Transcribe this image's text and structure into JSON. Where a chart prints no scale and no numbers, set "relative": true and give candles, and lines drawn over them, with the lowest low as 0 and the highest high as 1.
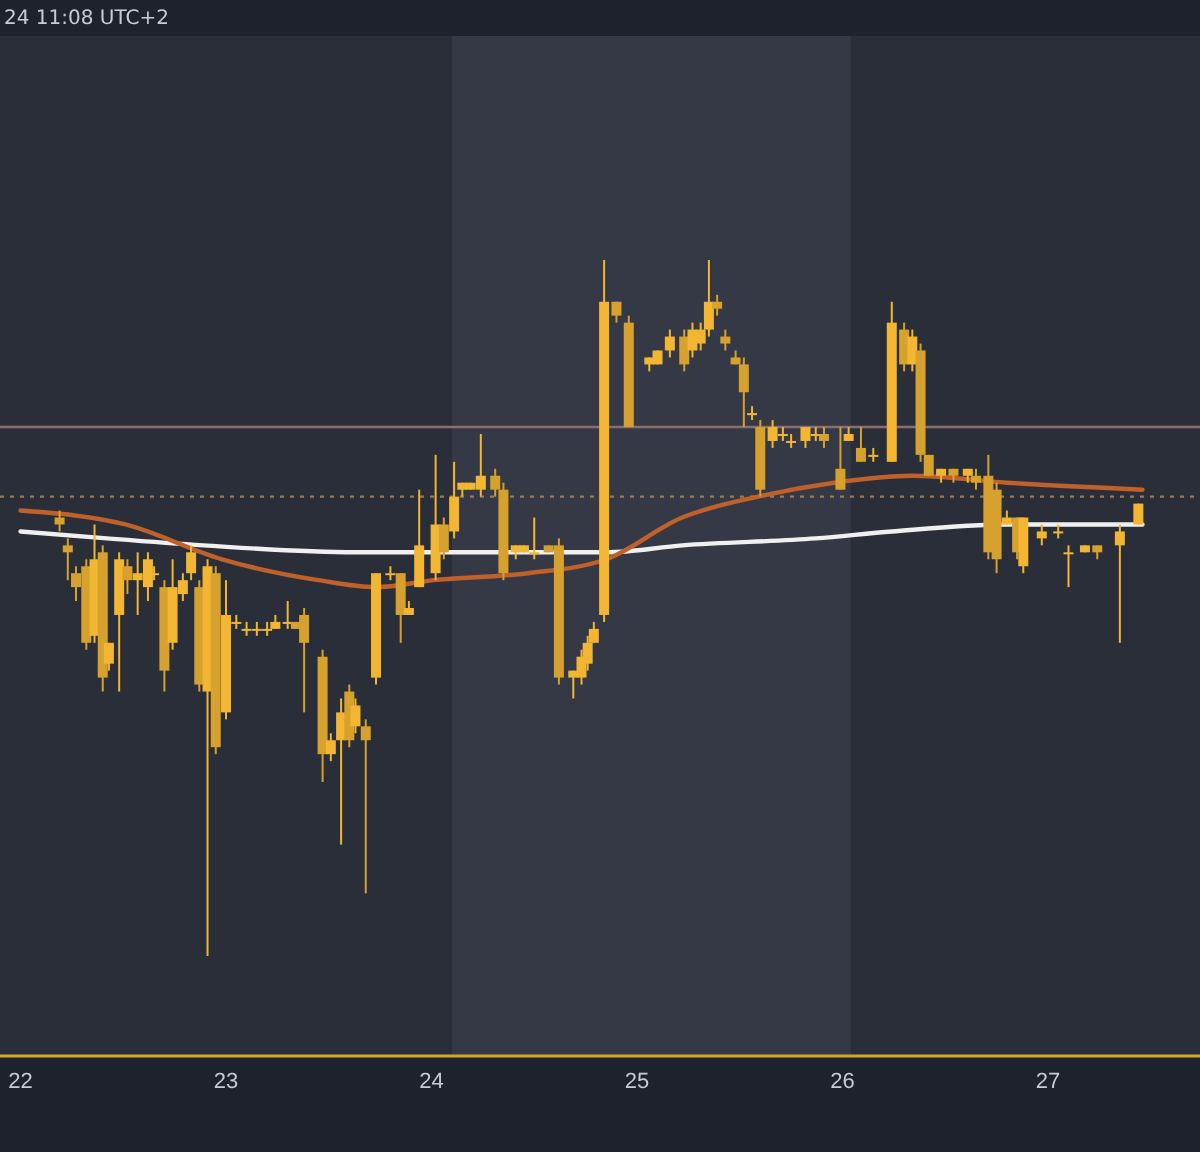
{
  "chart_data": {
    "type": "candlestick",
    "relative": true,
    "annotations": [
      "24 11:08 UTC+2"
    ],
    "xlim": [
      21.9,
      27.74
    ],
    "xticks": [
      22,
      23,
      24,
      25,
      26,
      27
    ],
    "bands": [
      {
        "axis": "x",
        "from": 24.1,
        "to": 26.04,
        "color": "#353945"
      }
    ],
    "ref_lines": [
      {
        "axis": "y",
        "value": 0.76,
        "color": "#8a6e70",
        "line_style": "solid"
      },
      {
        "axis": "y",
        "value": 0.66,
        "color": "#9a7a55",
        "line_style": "dotted"
      }
    ],
    "series": [
      {
        "type": "candlestick",
        "color": "#f2b632",
        "colors": [
          "#d6a12c",
          "#d6a12c",
          "#d6a12c",
          "#d6a12c",
          "#f2b632",
          "#d6a12c",
          "#f2b632",
          "#f2b632",
          "#d6a12c",
          "#f2b632",
          "#f2b632",
          "#f2b632",
          "#d6a12c",
          "#f2b632",
          "#f2b632",
          "#f2b632",
          "#d6a12c",
          "#f2b632",
          "#d6a12c",
          "#f2b632",
          "#f2b632",
          "#f2b632",
          "#f2b632",
          "#f2b632",
          "#f2b632",
          "#f2b632",
          "#d6a12c",
          "#d6a12c",
          "#d6a12c",
          "#f2b632",
          "#f2b632",
          "#d6a12c",
          "#f2b632",
          "#d6a12c",
          "#f2b632",
          "#f2b632",
          "#d6a12c",
          "#f2b632",
          "#f2b632",
          "#f2b632",
          "#d6a12c",
          "#f2b632",
          "#f2b632",
          "#f2b632",
          "#f2b632",
          "#d6a12c",
          "#d6a12c",
          "#f2b632",
          "#f2b632",
          "#f2b632",
          "#d6a12c",
          "#d6a12c",
          "#f2b632",
          "#f2b632",
          "#f2b632",
          "#f2b632",
          "#f2b632",
          "#d6a12c",
          "#d6a12c",
          "#f2b632",
          "#f2b632",
          "#f2b632",
          "#d6a12c",
          "#f2b632",
          "#f2b632",
          "#f2b632",
          "#d6a12c",
          "#d6a12c",
          "#d6a12c",
          "#d6a12c",
          "#f2b632",
          "#d6a12c",
          "#f2b632",
          "#f2b632",
          "#f2b632",
          "#f2b632",
          "#f2b632",
          "#d6a12c",
          "#d6a12c",
          "#f2b632",
          "#d6a12c",
          "#f2b632",
          "#f2b632",
          "#d6a12c",
          "#f2b632",
          "#d6a12c",
          "#d6a12c",
          "#f2b632",
          "#d6a12c",
          "#f2b632",
          "#d6a12c",
          "#d6a12c",
          "#d6a12c",
          "#f2b632",
          "#d6a12c",
          "#f2b632",
          "#f2b632",
          "#f2b632",
          "#f2b632",
          "#f2b632",
          "#d6a12c",
          "#f2b632",
          "#f2b632"
        ],
        "x": [
          22.19,
          22.23,
          22.27,
          22.32,
          22.36,
          22.4,
          22.43,
          22.48,
          22.52,
          22.57,
          22.62,
          22.65,
          22.7,
          22.74,
          22.79,
          22.83,
          22.87,
          22.91,
          22.95,
          23.0,
          23.05,
          23.1,
          23.15,
          23.2,
          23.24,
          23.3,
          23.34,
          23.38,
          23.47,
          23.51,
          23.56,
          23.6,
          23.63,
          23.68,
          23.73,
          23.8,
          23.85,
          23.89,
          23.94,
          24.02,
          24.06,
          24.11,
          24.15,
          24.19,
          24.24,
          24.31,
          24.35,
          24.41,
          24.45,
          24.5,
          24.57,
          24.62,
          24.69,
          24.73,
          24.76,
          24.79,
          24.84,
          24.9,
          24.96,
          25.06,
          25.1,
          25.16,
          25.23,
          25.27,
          25.31,
          25.35,
          25.39,
          25.43,
          25.48,
          25.52,
          25.56,
          25.6,
          25.66,
          25.71,
          25.75,
          25.82,
          25.87,
          25.91,
          25.99,
          26.03,
          26.09,
          26.15,
          26.24,
          26.3,
          26.34,
          26.38,
          26.42,
          26.48,
          26.54,
          26.61,
          26.65,
          26.71,
          26.75,
          26.8,
          26.85,
          26.88,
          26.97,
          27.05,
          27.1,
          27.18,
          27.24,
          27.35,
          27.44
        ],
        "ohlc": [
          [
            0.63,
            0.64,
            0.61,
            0.62
          ],
          [
            0.59,
            0.6,
            0.54,
            0.58
          ],
          [
            0.55,
            0.56,
            0.51,
            0.53
          ],
          [
            0.56,
            0.57,
            0.44,
            0.45
          ],
          [
            0.46,
            0.62,
            0.45,
            0.57
          ],
          [
            0.58,
            0.59,
            0.38,
            0.4
          ],
          [
            0.42,
            0.45,
            0.41,
            0.45
          ],
          [
            0.49,
            0.58,
            0.38,
            0.57
          ],
          [
            0.56,
            0.57,
            0.52,
            0.54
          ],
          [
            0.54,
            0.58,
            0.49,
            0.55
          ],
          [
            0.53,
            0.58,
            0.51,
            0.57
          ],
          [
            0.55,
            0.56,
            0.54,
            0.55
          ],
          [
            0.53,
            0.54,
            0.38,
            0.41
          ],
          [
            0.45,
            0.57,
            0.44,
            0.53
          ],
          [
            0.52,
            0.55,
            0.51,
            0.54
          ],
          [
            0.55,
            0.59,
            0.54,
            0.58
          ],
          [
            0.53,
            0.54,
            0.38,
            0.39
          ],
          [
            0.38,
            0.57,
            0,
            0.56
          ],
          [
            0.55,
            0.56,
            0.29,
            0.3
          ],
          [
            0.35,
            0.54,
            0.34,
            0.49
          ],
          [
            0.48,
            0.49,
            0.47,
            0.48
          ],
          [
            0.47,
            0.48,
            0.46,
            0.47
          ],
          [
            0.47,
            0.48,
            0.46,
            0.47
          ],
          [
            0.47,
            0.48,
            0.46,
            0.47
          ],
          [
            0.47,
            0.49,
            0.47,
            0.48
          ],
          [
            0.48,
            0.51,
            0.47,
            0.48
          ],
          [
            0.48,
            0.48,
            0.47,
            0.47
          ],
          [
            0.49,
            0.5,
            0.35,
            0.45
          ],
          [
            0.43,
            0.44,
            0.25,
            0.29
          ],
          [
            0.29,
            0.32,
            0.28,
            0.31
          ],
          [
            0.31,
            0.37,
            0.16,
            0.35
          ],
          [
            0.38,
            0.39,
            0.3,
            0.31
          ],
          [
            0.33,
            0.37,
            0.32,
            0.36
          ],
          [
            0.33,
            0.34,
            0.09,
            0.31
          ],
          [
            0.4,
            0.55,
            0.39,
            0.55
          ],
          [
            0.55,
            0.56,
            0.54,
            0.55
          ],
          [
            0.55,
            0.55,
            0.45,
            0.49
          ],
          [
            0.49,
            0.51,
            0.49,
            0.5
          ],
          [
            0.53,
            0.67,
            0.53,
            0.59
          ],
          [
            0.55,
            0.72,
            0.54,
            0.62
          ],
          [
            0.62,
            0.63,
            0.57,
            0.58
          ],
          [
            0.61,
            0.71,
            0.6,
            0.66
          ],
          [
            0.67,
            0.68,
            0.66,
            0.68
          ],
          [
            0.67,
            0.68,
            0.67,
            0.68
          ],
          [
            0.67,
            0.75,
            0.66,
            0.69
          ],
          [
            0.69,
            0.7,
            0.66,
            0.67
          ],
          [
            0.67,
            0.68,
            0.54,
            0.55
          ],
          [
            0.58,
            0.59,
            0.57,
            0.59
          ],
          [
            0.58,
            0.59,
            0.58,
            0.59
          ],
          [
            0.58,
            0.63,
            0.57,
            0.58
          ],
          [
            0.59,
            0.59,
            0.58,
            0.58
          ],
          [
            0.59,
            0.6,
            0.39,
            0.4
          ],
          [
            0.4,
            0.41,
            0.37,
            0.41
          ],
          [
            0.4,
            0.44,
            0.39,
            0.43
          ],
          [
            0.42,
            0.46,
            0.41,
            0.45
          ],
          [
            0.45,
            0.48,
            0.45,
            0.47
          ],
          [
            0.49,
            1.0,
            0.48,
            0.94
          ],
          [
            0.94,
            0.94,
            0.91,
            0.92
          ],
          [
            0.91,
            0.92,
            0.76,
            0.76
          ],
          [
            0.85,
            0.86,
            0.84,
            0.86
          ],
          [
            0.85,
            0.87,
            0.85,
            0.87
          ],
          [
            0.87,
            0.9,
            0.86,
            0.89
          ],
          [
            0.89,
            0.9,
            0.84,
            0.85
          ],
          [
            0.87,
            0.91,
            0.86,
            0.9
          ],
          [
            0.88,
            0.91,
            0.87,
            0.9
          ],
          [
            0.9,
            1.0,
            0.89,
            0.94
          ],
          [
            0.94,
            0.95,
            0.92,
            0.93
          ],
          [
            0.89,
            0.9,
            0.87,
            0.88
          ],
          [
            0.86,
            0.87,
            0.85,
            0.85
          ],
          [
            0.85,
            0.86,
            0.76,
            0.81
          ],
          [
            0.78,
            0.79,
            0.77,
            0.78
          ],
          [
            0.76,
            0.77,
            0.66,
            0.67
          ],
          [
            0.74,
            0.77,
            0.73,
            0.76
          ],
          [
            0.75,
            0.76,
            0.74,
            0.75
          ],
          [
            0.74,
            0.75,
            0.73,
            0.74
          ],
          [
            0.74,
            0.76,
            0.73,
            0.76
          ],
          [
            0.75,
            0.76,
            0.74,
            0.75
          ],
          [
            0.75,
            0.76,
            0.73,
            0.74
          ],
          [
            0.7,
            0.76,
            0.67,
            0.67
          ],
          [
            0.74,
            0.76,
            0.74,
            0.75
          ],
          [
            0.73,
            0.76,
            0.71,
            0.71
          ],
          [
            0.72,
            0.73,
            0.71,
            0.72
          ],
          [
            0.71,
            0.94,
            0.71,
            0.91
          ],
          [
            0.9,
            0.91,
            0.84,
            0.85
          ],
          [
            0.85,
            0.9,
            0.84,
            0.89
          ],
          [
            0.87,
            0.88,
            0.71,
            0.72
          ],
          [
            0.72,
            0.72,
            0.69,
            0.69
          ],
          [
            0.69,
            0.7,
            0.68,
            0.7
          ],
          [
            0.7,
            0.7,
            0.68,
            0.69
          ],
          [
            0.69,
            0.7,
            0.68,
            0.7
          ],
          [
            0.69,
            0.7,
            0.67,
            0.68
          ],
          [
            0.69,
            0.72,
            0.57,
            0.58
          ],
          [
            0.67,
            0.68,
            0.55,
            0.57
          ],
          [
            0.62,
            0.64,
            0.62,
            0.63
          ],
          [
            0.63,
            0.63,
            0.57,
            0.58
          ],
          [
            0.56,
            0.63,
            0.55,
            0.63
          ],
          [
            0.6,
            0.62,
            0.59,
            0.61
          ],
          [
            0.61,
            0.62,
            0.6,
            0.61
          ],
          [
            0.58,
            0.59,
            0.53,
            0.58
          ],
          [
            0.58,
            0.59,
            0.58,
            0.59
          ],
          [
            0.59,
            0.59,
            0.57,
            0.58
          ],
          [
            0.59,
            0.62,
            0.45,
            0.61
          ],
          [
            0.62,
            0.65,
            0.62,
            0.65
          ]
        ]
      },
      {
        "type": "line",
        "color": "#f0f0f0",
        "x": [
          22.0,
          22.42,
          22.89,
          23.63,
          24.01,
          24.47,
          24.85,
          25.22,
          25.87,
          26.24,
          26.8,
          27.46
        ],
        "values": [
          0.61,
          0.6,
          0.59,
          0.58,
          0.58,
          0.58,
          0.58,
          0.59,
          0.6,
          0.61,
          0.62,
          0.62
        ]
      },
      {
        "type": "line",
        "color": "#c0612b",
        "x": [
          22.0,
          22.51,
          22.98,
          23.45,
          23.73,
          24.01,
          24.47,
          24.85,
          25.22,
          25.59,
          25.96,
          26.34,
          26.8,
          27.46
        ],
        "values": [
          0.64,
          0.62,
          0.57,
          0.54,
          0.53,
          0.54,
          0.55,
          0.57,
          0.63,
          0.66,
          0.68,
          0.69,
          0.68,
          0.67
        ]
      }
    ]
  }
}
